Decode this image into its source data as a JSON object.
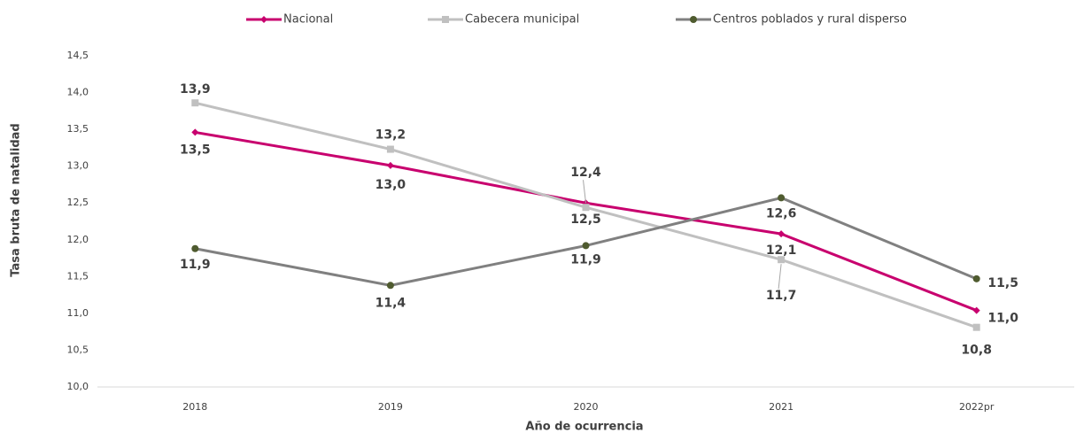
{
  "chart_data": {
    "type": "line",
    "y_label": "Tasa bruta de natalidad",
    "x_label": "Año de ocurrencia",
    "categories": [
      "2018",
      "2019",
      "2020",
      "2021",
      "2022pr"
    ],
    "series": [
      {
        "name": "Nacional",
        "color": "#c8006e",
        "marker": "diamond",
        "values": [
          13.46,
          13.01,
          12.5,
          12.08,
          11.04
        ],
        "value_labels": [
          "13,5",
          "13,0",
          "12,5",
          "12,1",
          "11,0"
        ]
      },
      {
        "name": "Cabecera municipal",
        "color": "#c0c0c0",
        "marker": "square",
        "values": [
          13.86,
          13.23,
          12.44,
          11.73,
          10.81
        ],
        "value_labels": [
          "13,9",
          "13,2",
          "12,4",
          "11,7",
          "10,8"
        ]
      },
      {
        "name": "Centros poblados y rural disperso",
        "color": "#808080",
        "marker": "circle",
        "values": [
          11.88,
          11.38,
          11.92,
          12.57,
          11.47
        ],
        "value_labels": [
          "11,9",
          "11,4",
          "11,9",
          "12,6",
          "11,5"
        ]
      }
    ],
    "ylim": [
      10,
      14.5
    ],
    "yticks": [
      {
        "value": 10,
        "label": "10,0"
      },
      {
        "value": 10.5,
        "label": "10,5"
      },
      {
        "value": 11,
        "label": "11,0"
      },
      {
        "value": 11.5,
        "label": "11,5"
      },
      {
        "value": 12,
        "label": "12,0"
      },
      {
        "value": 12.5,
        "label": "12,5"
      },
      {
        "value": 13,
        "label": "13,0"
      },
      {
        "value": 13.5,
        "label": "13,5"
      },
      {
        "value": 14,
        "label": "14,0"
      },
      {
        "value": 14.5,
        "label": "14,5"
      }
    ],
    "legend": "top"
  }
}
